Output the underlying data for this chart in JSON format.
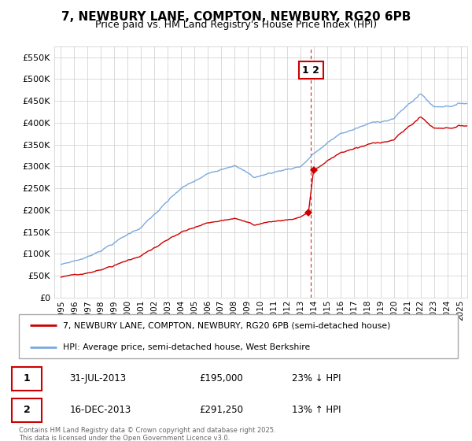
{
  "title": "7, NEWBURY LANE, COMPTON, NEWBURY, RG20 6PB",
  "subtitle": "Price paid vs. HM Land Registry's House Price Index (HPI)",
  "legend_line1": "7, NEWBURY LANE, COMPTON, NEWBURY, RG20 6PB (semi-detached house)",
  "legend_line2": "HPI: Average price, semi-detached house, West Berkshire",
  "footer": "Contains HM Land Registry data © Crown copyright and database right 2025.\nThis data is licensed under the Open Government Licence v3.0.",
  "sale1_label": "1",
  "sale1_date": "31-JUL-2013",
  "sale1_price": "£195,000",
  "sale1_hpi": "23% ↓ HPI",
  "sale1_date_num": 2013.58,
  "sale1_price_val": 195000,
  "sale2_label": "2",
  "sale2_date": "16-DEC-2013",
  "sale2_price": "£291,250",
  "sale2_hpi": "13% ↑ HPI",
  "sale2_date_num": 2013.96,
  "sale2_price_val": 291250,
  "yticks": [
    0,
    50000,
    100000,
    150000,
    200000,
    250000,
    300000,
    350000,
    400000,
    450000,
    500000,
    550000
  ],
  "ytick_labels": [
    "£0",
    "£50K",
    "£100K",
    "£150K",
    "£200K",
    "£250K",
    "£300K",
    "£350K",
    "£400K",
    "£450K",
    "£500K",
    "£550K"
  ],
  "xlim": [
    1994.5,
    2025.5
  ],
  "ylim": [
    0,
    575000
  ],
  "red_color": "#cc0000",
  "blue_color": "#7aaadd",
  "grid_color": "#cccccc",
  "background_color": "#ffffff"
}
